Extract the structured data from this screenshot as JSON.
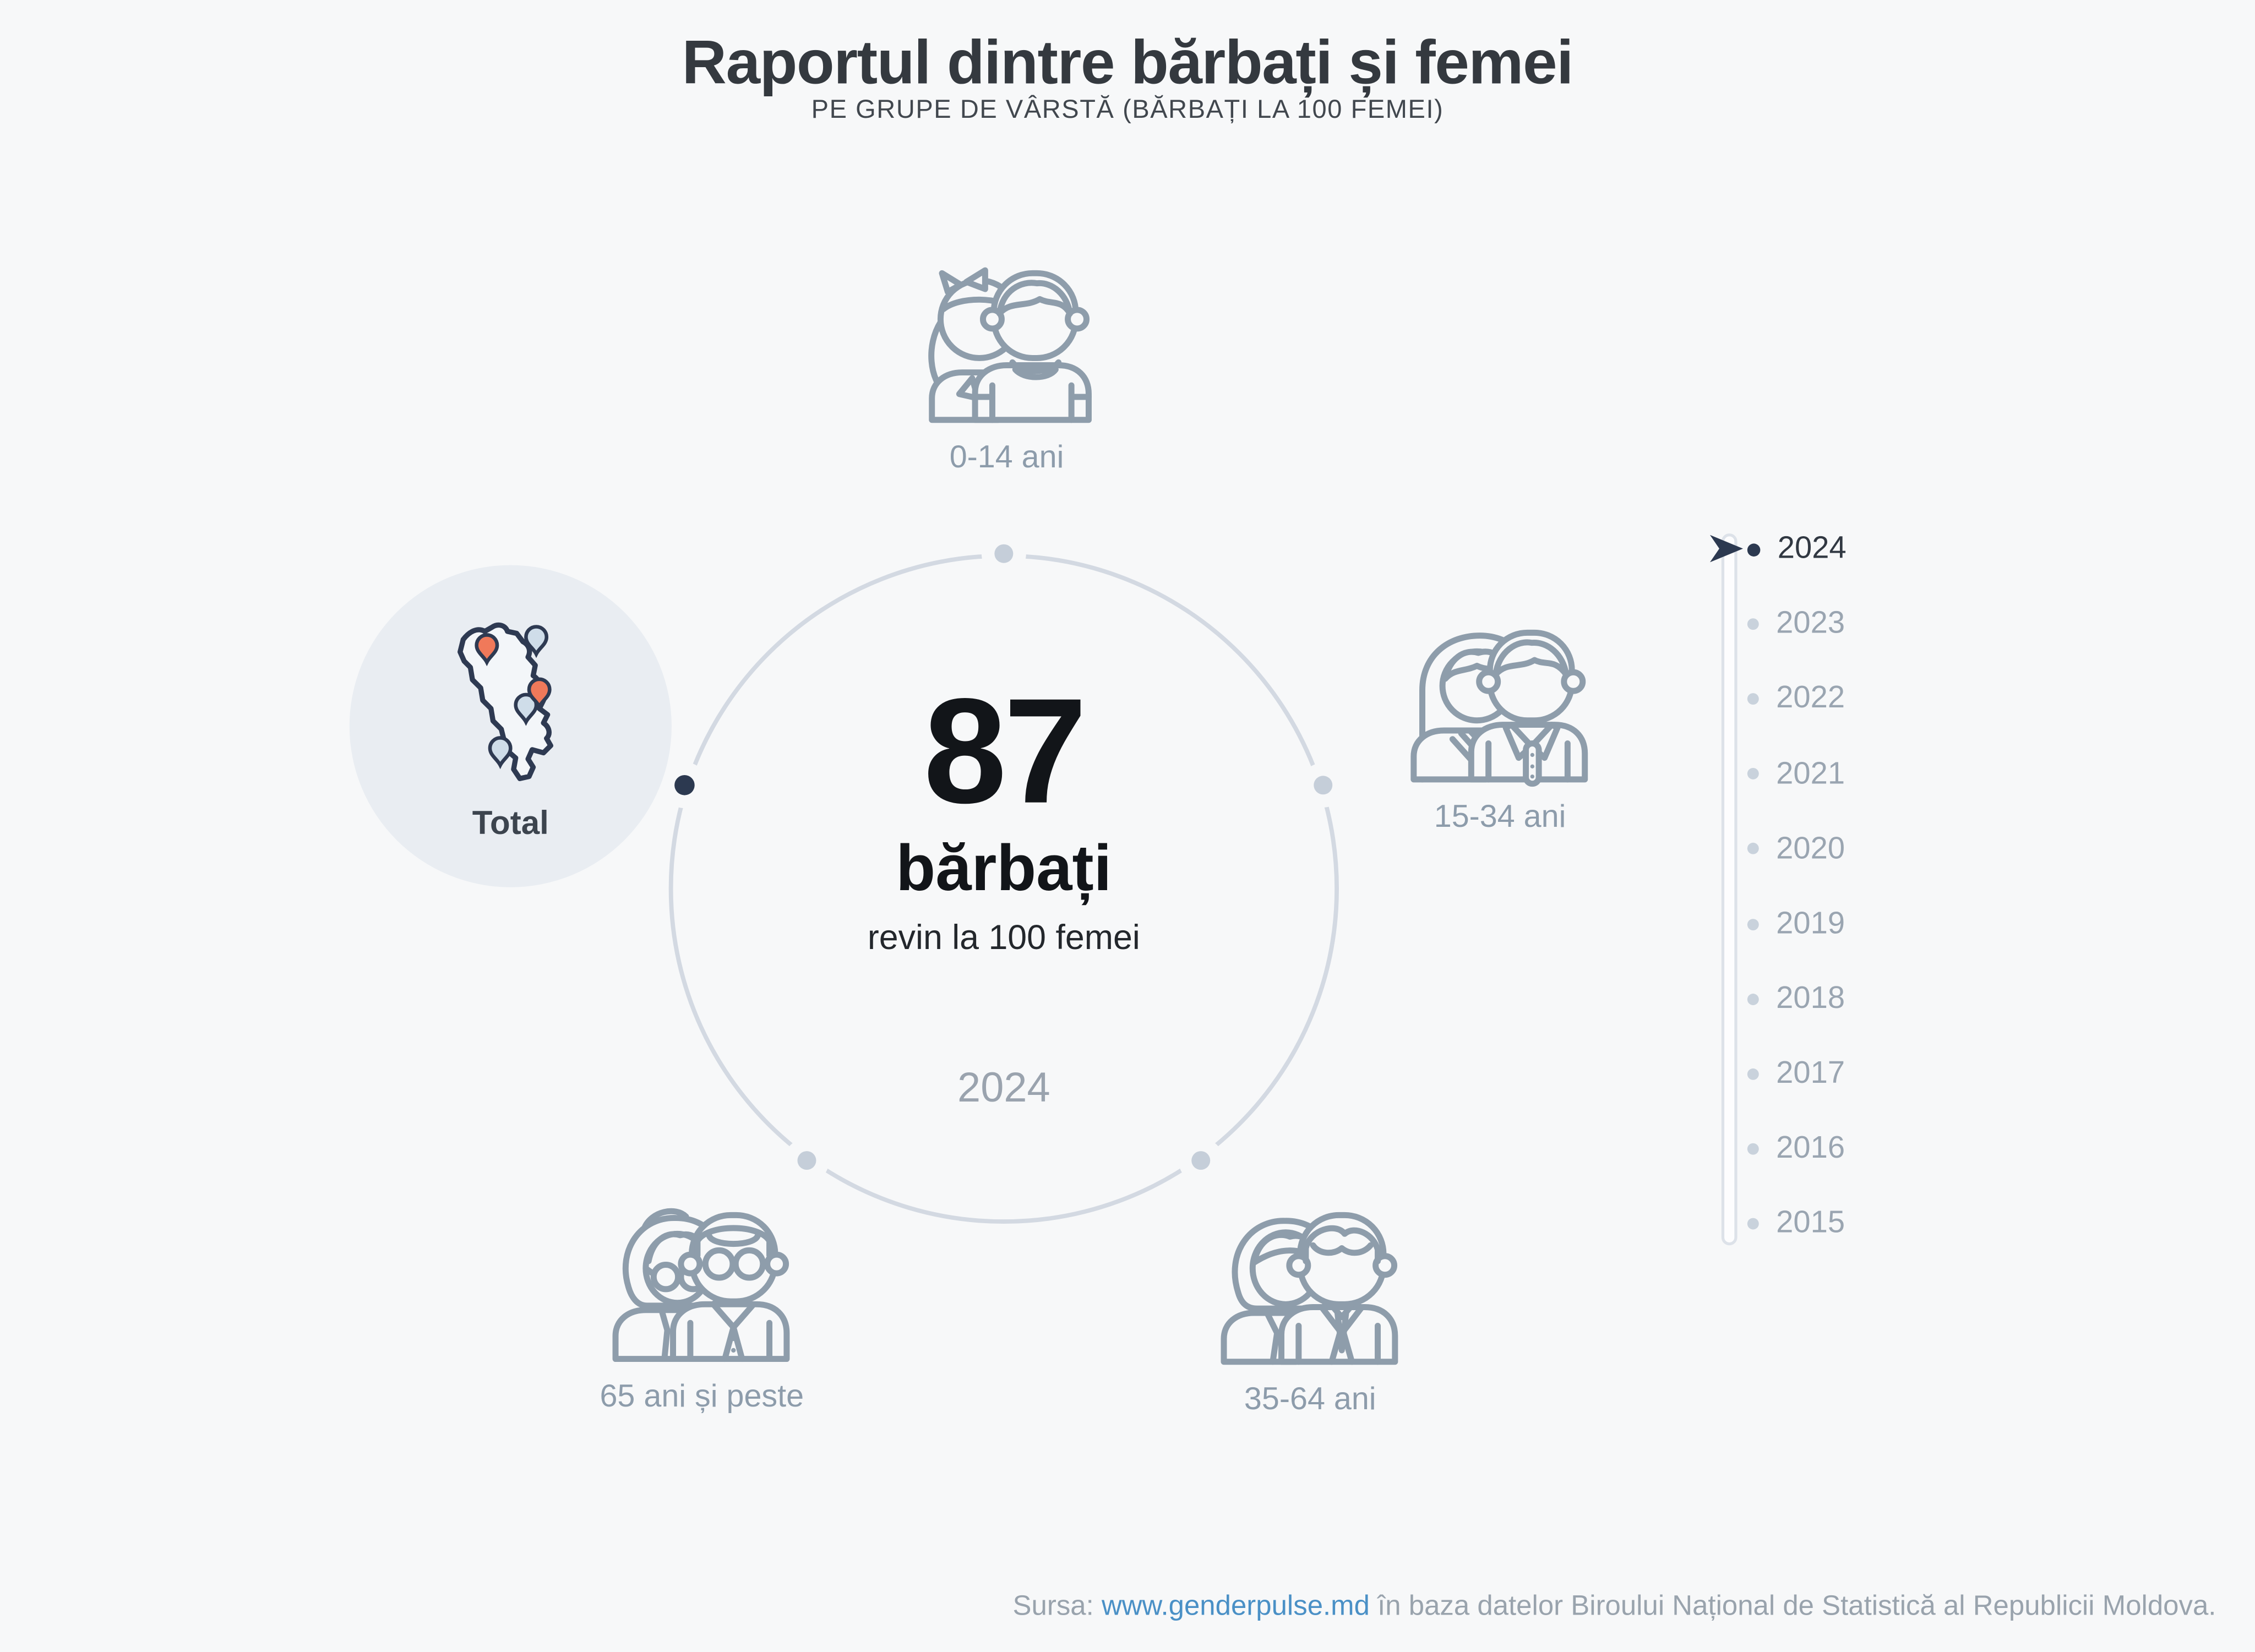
{
  "header": {
    "title": "Raportul dintre bărbați și femei",
    "subtitle": "PE GRUPE DE VÂRSTĂ (BĂRBAȚI LA 100 FEMEI)"
  },
  "center": {
    "value": "87",
    "unit": "bărbați",
    "caption": "revin la 100 femei",
    "year": "2024"
  },
  "categories": [
    {
      "id": "total",
      "label": "Total",
      "selected": true
    },
    {
      "id": "0-14",
      "label": "0-14 ani",
      "selected": false
    },
    {
      "id": "15-34",
      "label": "15-34 ani",
      "selected": false
    },
    {
      "id": "35-64",
      "label": "35-64 ani",
      "selected": false
    },
    {
      "id": "65plus",
      "label": "65 ani și peste",
      "selected": false
    }
  ],
  "timeline": {
    "years": [
      "2024",
      "2023",
      "2022",
      "2021",
      "2020",
      "2019",
      "2018",
      "2017",
      "2016",
      "2015"
    ],
    "selected": "2024"
  },
  "footer": {
    "prefix": "Sursa:",
    "link": "www.genderpulse.md",
    "suffix": "în baza datelor Biroului Național de Statistică al Republicii Moldova."
  },
  "colors": {
    "background": "#f7f8f9",
    "accent_dark": "#2c3950",
    "icon_gray": "#8e9dab",
    "ring_gray": "#d3d9e2",
    "muted_gray": "#9aa5b1",
    "link_blue": "#4a90c6",
    "pin_orange": "#f0795a",
    "pin_blue": "#cfdde9",
    "text_dark": "#121519"
  },
  "chart_data": {
    "type": "table",
    "title": "Raportul dintre bărbați și femei",
    "subtitle": "PE GRUPE DE VÂRSTĂ (BĂRBAȚI LA 100 FEMEI)",
    "unit": "bărbați la 100 femei",
    "categories": [
      "Total",
      "0-14 ani",
      "15-34 ani",
      "35-64 ani",
      "65 ani și peste"
    ],
    "selected_category": "Total",
    "years": [
      2024,
      2023,
      2022,
      2021,
      2020,
      2019,
      2018,
      2017,
      2016,
      2015
    ],
    "selected_year": 2024,
    "values": [
      {
        "category": "Total",
        "year": 2024,
        "men_per_100_women": 87
      }
    ]
  }
}
